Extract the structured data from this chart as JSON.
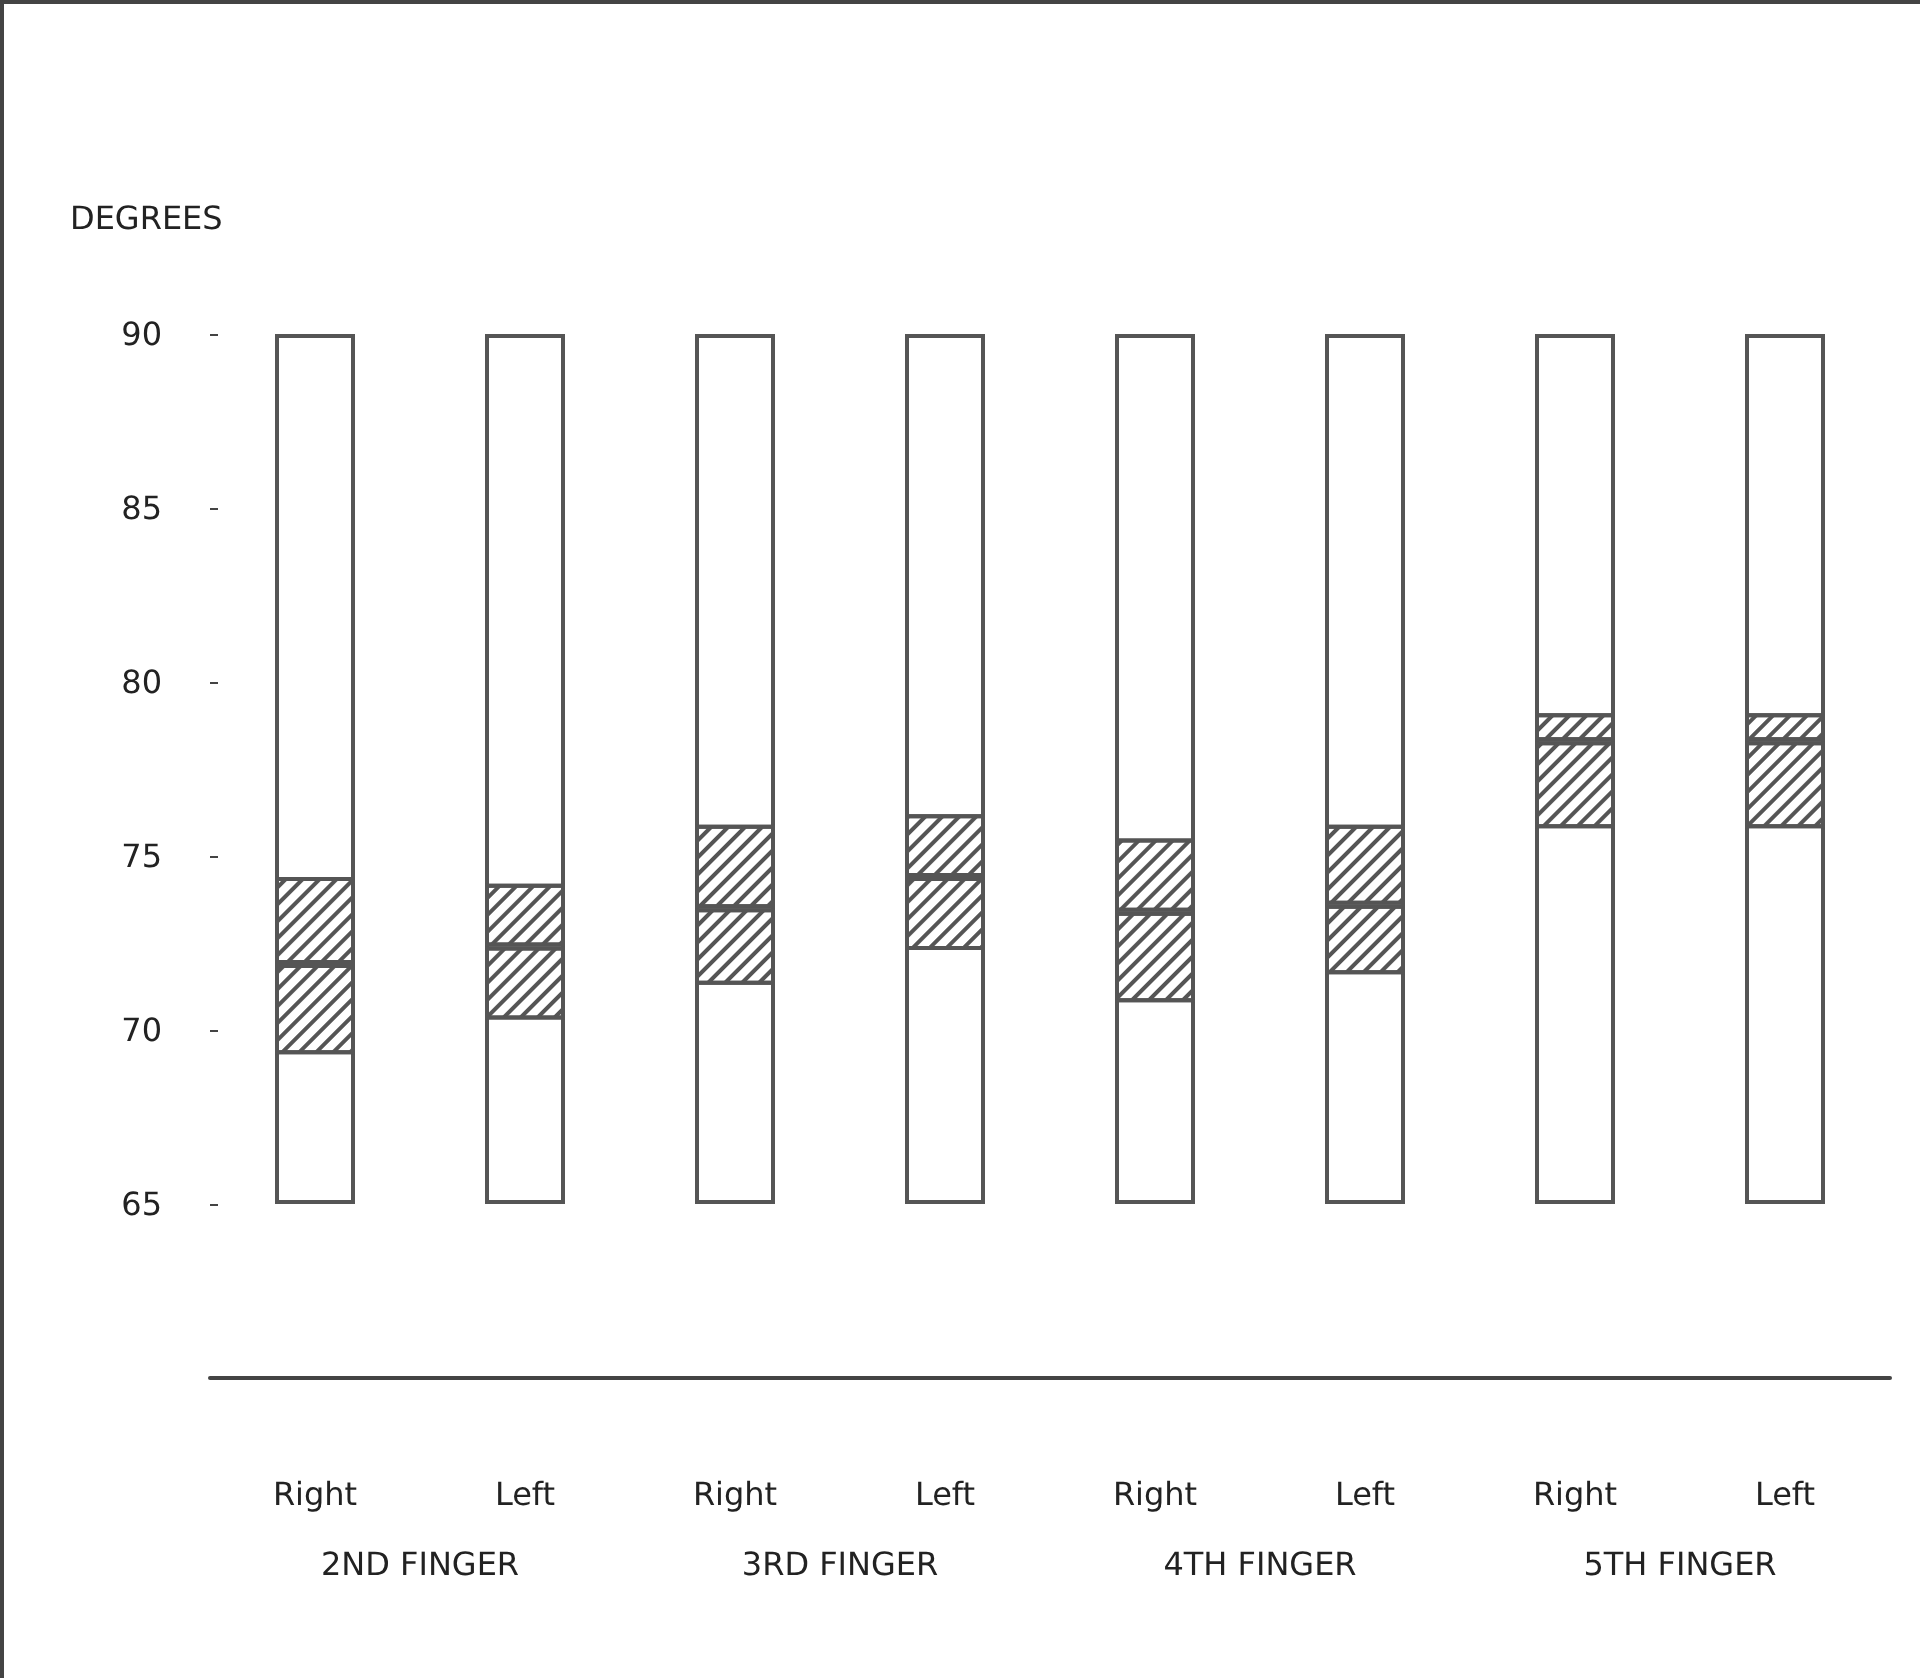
{
  "chart_data": {
    "type": "bar",
    "ylabel": "DEGREES",
    "categories": [
      "Right",
      "Left",
      "Right",
      "Left",
      "Right",
      "Left",
      "Right",
      "Left"
    ],
    "annotations": [
      "2ND FINGER",
      "3RD FINGER",
      "4TH FINGER",
      "5TH FINGER"
    ],
    "series": [
      {
        "color": "#ffffff",
        "base": [
          65,
          65,
          65,
          65,
          65,
          65,
          65,
          65
        ],
        "values": [
          25,
          25,
          25,
          25,
          25,
          25,
          25,
          25
        ]
      },
      {
        "color": "#555555",
        "base": [
          69.3,
          70.3,
          71.3,
          72.3,
          70.8,
          71.6,
          75.8,
          75.8
        ],
        "values": [
          2.6,
          2.1,
          2.2,
          2.1,
          2.6,
          2.0,
          2.5,
          2.5
        ]
      },
      {
        "color": "#555555",
        "base": [
          71.9,
          72.4,
          73.5,
          74.4,
          73.4,
          73.6,
          78.3,
          78.3
        ],
        "values": [
          2.5,
          1.8,
          2.4,
          1.8,
          2.1,
          2.3,
          0.8,
          0.8
        ]
      }
    ],
    "ylim": [
      60,
      90
    ],
    "yticks": [
      65,
      70,
      75,
      80,
      85,
      90
    ],
    "grid": false
  }
}
